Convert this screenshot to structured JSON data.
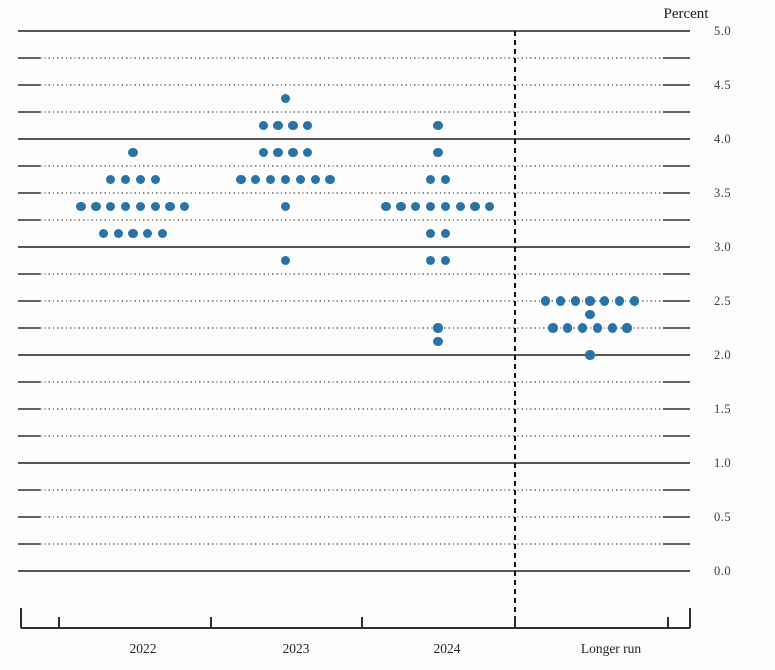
{
  "chart_data": {
    "type": "scatter",
    "subtype": "fomc-dot-plot",
    "title": "",
    "unit_label": "Percent",
    "ylabel": "Percent",
    "ylim": [
      0.0,
      5.0
    ],
    "y_tick_step": 0.5,
    "y_tick_labels": [
      "5.0",
      "4.5",
      "4.0",
      "3.5",
      "3.0",
      "2.5",
      "2.0",
      "1.5",
      "1.0",
      "0.5",
      "0.0"
    ],
    "gridline_step": 0.25,
    "grid_style": "solid lines at whole percents, dotted lines at quarter percents",
    "legend_position": "none",
    "dot_color": "#2a73a6",
    "separator_note": "dashed vertical line between 2024 and Longer run",
    "categories": [
      "2022",
      "2023",
      "2024",
      "Longer run"
    ],
    "columns": [
      {
        "label": "2022",
        "dots": [
          {
            "rate": 3.875,
            "count": 1
          },
          {
            "rate": 3.625,
            "count": 4
          },
          {
            "rate": 3.375,
            "count": 8
          },
          {
            "rate": 3.125,
            "count": 5
          }
        ]
      },
      {
        "label": "2023",
        "dots": [
          {
            "rate": 4.375,
            "count": 1
          },
          {
            "rate": 4.125,
            "count": 4
          },
          {
            "rate": 3.875,
            "count": 4
          },
          {
            "rate": 3.625,
            "count": 7
          },
          {
            "rate": 3.375,
            "count": 1
          },
          {
            "rate": 2.875,
            "count": 1
          }
        ]
      },
      {
        "label": "2024",
        "dots": [
          {
            "rate": 4.125,
            "count": 1
          },
          {
            "rate": 3.875,
            "count": 1
          },
          {
            "rate": 3.625,
            "count": 2
          },
          {
            "rate": 3.375,
            "count": 8
          },
          {
            "rate": 3.125,
            "count": 2
          },
          {
            "rate": 2.875,
            "count": 2
          },
          {
            "rate": 2.25,
            "count": 1
          },
          {
            "rate": 2.125,
            "count": 1
          }
        ]
      },
      {
        "label": "Longer run",
        "dots": [
          {
            "rate": 2.5,
            "count": 7
          },
          {
            "rate": 2.375,
            "count": 1
          },
          {
            "rate": 2.25,
            "count": 6
          },
          {
            "rate": 2.0,
            "count": 1
          }
        ]
      }
    ]
  }
}
